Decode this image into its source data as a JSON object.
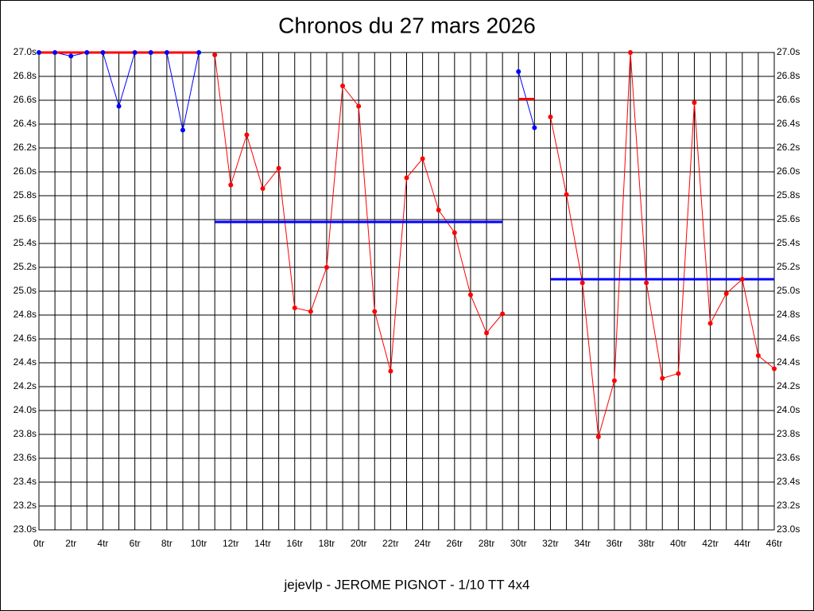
{
  "chart_data": {
    "type": "line",
    "title": "Chronos du 27 mars 2026",
    "footer": "jejevlp - JEROME PIGNOT - 1/10 TT 4x4",
    "x": [
      0,
      1,
      2,
      3,
      4,
      5,
      6,
      7,
      8,
      9,
      10,
      11,
      12,
      13,
      14,
      15,
      16,
      17,
      18,
      19,
      20,
      21,
      22,
      23,
      24,
      25,
      26,
      27,
      28,
      29,
      30,
      31,
      32,
      33,
      34,
      35,
      36,
      37,
      38,
      39,
      40,
      41,
      42,
      43,
      44,
      45,
      46
    ],
    "series": [
      {
        "color": "#0000ff",
        "values": [
          27.0,
          27.0,
          26.97,
          27.0,
          27.0,
          26.55,
          27.0,
          27.0,
          27.0,
          26.35,
          27.0,
          null,
          null,
          null,
          null,
          null,
          null,
          null,
          null,
          null,
          null,
          null,
          null,
          null,
          null,
          null,
          null,
          null,
          null,
          null,
          26.84,
          26.37,
          null,
          null,
          null,
          null,
          null,
          null,
          null,
          null,
          null,
          null,
          null,
          null,
          null,
          null,
          null
        ]
      },
      {
        "color": "#ff0000",
        "values": [
          null,
          null,
          null,
          null,
          null,
          null,
          null,
          null,
          null,
          null,
          null,
          26.98,
          25.89,
          26.31,
          25.86,
          26.03,
          24.86,
          24.83,
          25.2,
          26.72,
          26.55,
          24.83,
          24.33,
          25.95,
          26.11,
          25.68,
          25.49,
          24.97,
          24.65,
          24.81,
          null,
          null,
          26.46,
          25.81,
          25.07,
          23.78,
          24.25,
          27.0,
          25.07,
          24.27,
          24.31,
          26.58,
          24.73,
          24.98,
          25.1,
          24.46,
          24.35
        ]
      }
    ],
    "averages": [
      {
        "value": 27.0,
        "start": 0,
        "end": 10,
        "color": "#ff0000"
      },
      {
        "value": 25.58,
        "start": 11,
        "end": 29,
        "color": "#0000ff"
      },
      {
        "value": 26.61,
        "start": 30,
        "end": 31,
        "color": "#ff0000"
      },
      {
        "value": 25.1,
        "start": 32,
        "end": 46,
        "color": "#0000ff"
      }
    ],
    "xlim": [
      0,
      46
    ],
    "xticks": [
      {
        "value": 0,
        "label": "0tr"
      },
      {
        "value": 2,
        "label": "2tr"
      },
      {
        "value": 4,
        "label": "4tr"
      },
      {
        "value": 6,
        "label": "6tr"
      },
      {
        "value": 8,
        "label": "8tr"
      },
      {
        "value": 10,
        "label": "10tr"
      },
      {
        "value": 12,
        "label": "12tr"
      },
      {
        "value": 14,
        "label": "14tr"
      },
      {
        "value": 16,
        "label": "16tr"
      },
      {
        "value": 18,
        "label": "18tr"
      },
      {
        "value": 20,
        "label": "20tr"
      },
      {
        "value": 22,
        "label": "22tr"
      },
      {
        "value": 24,
        "label": "24tr"
      },
      {
        "value": 26,
        "label": "26tr"
      },
      {
        "value": 28,
        "label": "28tr"
      },
      {
        "value": 30,
        "label": "30tr"
      },
      {
        "value": 32,
        "label": "32tr"
      },
      {
        "value": 34,
        "label": "34tr"
      },
      {
        "value": 36,
        "label": "36tr"
      },
      {
        "value": 38,
        "label": "38tr"
      },
      {
        "value": 40,
        "label": "40tr"
      },
      {
        "value": 42,
        "label": "42tr"
      },
      {
        "value": 44,
        "label": "44tr"
      },
      {
        "value": 46,
        "label": "46tr"
      }
    ],
    "ylim": [
      23.0,
      27.0
    ],
    "yticks": [
      {
        "value": 23.0,
        "label": "23.0s"
      },
      {
        "value": 23.2,
        "label": "23.2s"
      },
      {
        "value": 23.4,
        "label": "23.4s"
      },
      {
        "value": 23.6,
        "label": "23.6s"
      },
      {
        "value": 23.8,
        "label": "23.8s"
      },
      {
        "value": 24.0,
        "label": "24.0s"
      },
      {
        "value": 24.2,
        "label": "24.2s"
      },
      {
        "value": 24.4,
        "label": "24.4s"
      },
      {
        "value": 24.6,
        "label": "24.6s"
      },
      {
        "value": 24.8,
        "label": "24.8s"
      },
      {
        "value": 25.0,
        "label": "25.0s"
      },
      {
        "value": 25.2,
        "label": "25.2s"
      },
      {
        "value": 25.4,
        "label": "25.4s"
      },
      {
        "value": 25.6,
        "label": "25.6s"
      },
      {
        "value": 25.8,
        "label": "25.8s"
      },
      {
        "value": 26.0,
        "label": "26.0s"
      },
      {
        "value": 26.2,
        "label": "26.2s"
      },
      {
        "value": 26.4,
        "label": "26.4s"
      },
      {
        "value": 26.6,
        "label": "26.6s"
      },
      {
        "value": 26.8,
        "label": "26.8s"
      },
      {
        "value": 27.0,
        "label": "27.0s"
      }
    ],
    "grid": true
  }
}
